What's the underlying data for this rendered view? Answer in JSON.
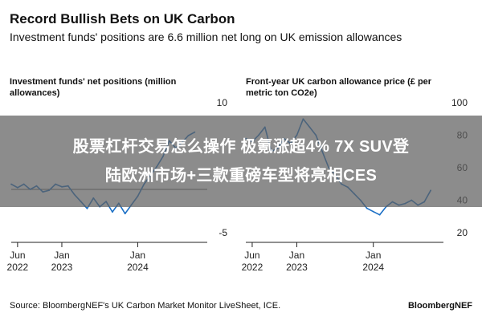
{
  "header": {
    "title": "Record Bullish Bets on UK Carbon",
    "subtitle": "Investment funds' positions are 6.6 million net long on UK emission allowances"
  },
  "overlay": {
    "text": "股票杠杆交易怎么操作 极氪涨超4% 7X SUV登\n陆欧洲市场+三款重磅车型将亮相CES"
  },
  "footer": {
    "source": "Source: BloombergNEF's UK Carbon Market Monitor LiveSheet, ICE.",
    "brand": "BloombergNEF"
  },
  "colors": {
    "line": "#1b6fc5",
    "zero_line": "#222222",
    "overlay": "#606060"
  },
  "chart_data": [
    {
      "type": "line",
      "title": "Investment funds' net positions (million allowances)",
      "xlabel": "",
      "ylabel": "",
      "x_ticks": [
        {
          "label": "Jun\n2022",
          "date": "2022-06"
        },
        {
          "label": "Jan\n2023",
          "date": "2023-01"
        },
        {
          "label": "Jan\n2024",
          "date": "2024-01"
        }
      ],
      "y_ticks": [
        "10",
        "-5"
      ],
      "ylim": [
        -5,
        10
      ],
      "xlim": [
        "2022-05",
        "2024-12"
      ],
      "grid": false,
      "series": [
        {
          "values": [
            {
              "x": "2022-05",
              "y": 0.6
            },
            {
              "x": "2022-06",
              "y": 0.2
            },
            {
              "x": "2022-07",
              "y": 0.6
            },
            {
              "x": "2022-08",
              "y": 0.0
            },
            {
              "x": "2022-09",
              "y": 0.4
            },
            {
              "x": "2022-10",
              "y": -0.3
            },
            {
              "x": "2022-11",
              "y": -0.1
            },
            {
              "x": "2022-12",
              "y": 0.6
            },
            {
              "x": "2023-01",
              "y": 0.3
            },
            {
              "x": "2023-02",
              "y": 0.4
            },
            {
              "x": "2023-03",
              "y": -0.6
            },
            {
              "x": "2023-04",
              "y": -1.4
            },
            {
              "x": "2023-05",
              "y": -2.2
            },
            {
              "x": "2023-06",
              "y": -1.0
            },
            {
              "x": "2023-07",
              "y": -2.0
            },
            {
              "x": "2023-08",
              "y": -1.4
            },
            {
              "x": "2023-09",
              "y": -2.6
            },
            {
              "x": "2023-10",
              "y": -1.6
            },
            {
              "x": "2023-11",
              "y": -2.8
            },
            {
              "x": "2023-12",
              "y": -1.8
            },
            {
              "x": "2024-01",
              "y": -0.8
            },
            {
              "x": "2024-02",
              "y": 0.6
            },
            {
              "x": "2024-03",
              "y": 1.6
            },
            {
              "x": "2024-04",
              "y": 2.6
            },
            {
              "x": "2024-05",
              "y": 3.8
            },
            {
              "x": "2024-06",
              "y": 5.6
            },
            {
              "x": "2024-07",
              "y": 4.8
            },
            {
              "x": "2024-08",
              "y": 5.4
            },
            {
              "x": "2024-09",
              "y": 6.2
            },
            {
              "x": "2024-10",
              "y": 6.6
            }
          ]
        }
      ]
    },
    {
      "type": "line",
      "title": "Front-year UK carbon allowance price (£ per metric ton CO2e)",
      "xlabel": "",
      "ylabel": "",
      "x_ticks": [
        {
          "label": "Jun\n2022",
          "date": "2022-06"
        },
        {
          "label": "Jan\n2023",
          "date": "2023-01"
        },
        {
          "label": "Jan\n2024",
          "date": "2024-01"
        }
      ],
      "y_ticks": [
        "100",
        "80",
        "60",
        "40",
        "20"
      ],
      "ylim": [
        20,
        100
      ],
      "xlim": [
        "2022-05",
        "2024-12"
      ],
      "grid": false,
      "series": [
        {
          "values": [
            {
              "x": "2022-05",
              "y": 78
            },
            {
              "x": "2022-06",
              "y": 76
            },
            {
              "x": "2022-07",
              "y": 80
            },
            {
              "x": "2022-08",
              "y": 85
            },
            {
              "x": "2022-09",
              "y": 70
            },
            {
              "x": "2022-10",
              "y": 72
            },
            {
              "x": "2022-11",
              "y": 78
            },
            {
              "x": "2022-12",
              "y": 75
            },
            {
              "x": "2023-01",
              "y": 80
            },
            {
              "x": "2023-02",
              "y": 90
            },
            {
              "x": "2023-03",
              "y": 85
            },
            {
              "x": "2023-04",
              "y": 80
            },
            {
              "x": "2023-05",
              "y": 70
            },
            {
              "x": "2023-06",
              "y": 60
            },
            {
              "x": "2023-07",
              "y": 56
            },
            {
              "x": "2023-08",
              "y": 50
            },
            {
              "x": "2023-09",
              "y": 48
            },
            {
              "x": "2023-10",
              "y": 44
            },
            {
              "x": "2023-11",
              "y": 40
            },
            {
              "x": "2023-12",
              "y": 35
            },
            {
              "x": "2024-01",
              "y": 33
            },
            {
              "x": "2024-02",
              "y": 31
            },
            {
              "x": "2024-03",
              "y": 36
            },
            {
              "x": "2024-04",
              "y": 39
            },
            {
              "x": "2024-05",
              "y": 37
            },
            {
              "x": "2024-06",
              "y": 38
            },
            {
              "x": "2024-07",
              "y": 40
            },
            {
              "x": "2024-08",
              "y": 37
            },
            {
              "x": "2024-09",
              "y": 39
            },
            {
              "x": "2024-10",
              "y": 46
            }
          ]
        }
      ]
    }
  ]
}
